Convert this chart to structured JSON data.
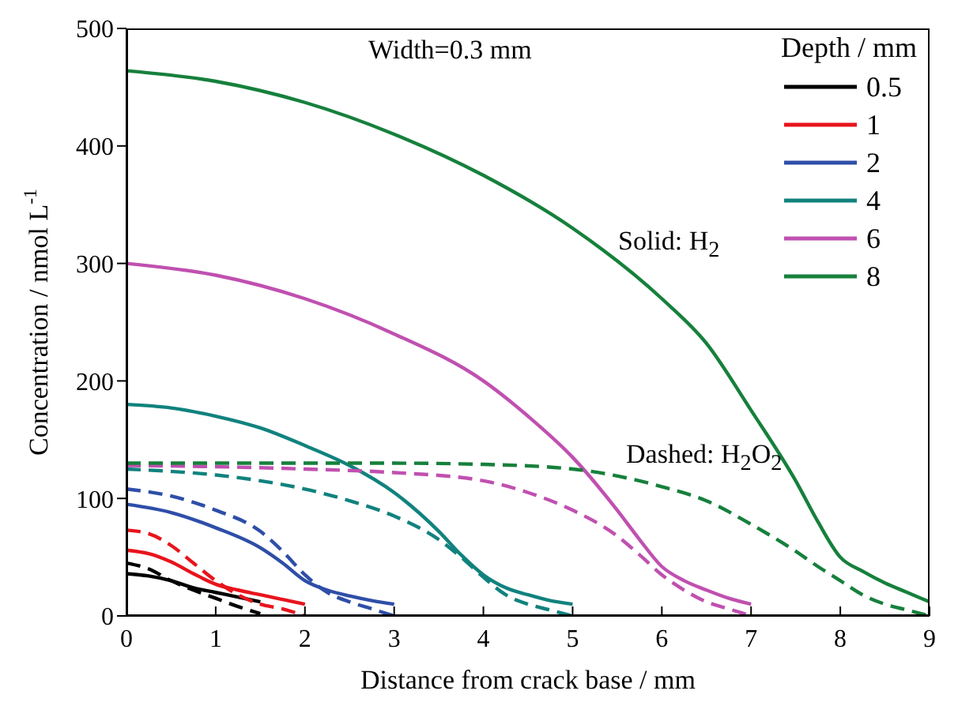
{
  "chart_data": {
    "type": "line",
    "xlabel": "Distance from crack base / mm",
    "ylabel": "Concentration / nmol L$^{-1}$",
    "legend_title": "Depth / mm",
    "legend": "top right",
    "marker": "none",
    "annotations": [
      "Width=0.3 mm",
      "Solid: H$_{2}$",
      "Dashed: H$_{2}$O$_{2}$"
    ],
    "xlim": [
      0,
      9
    ],
    "xticks": [
      0,
      1,
      2,
      3,
      4,
      5,
      6,
      7,
      8,
      9
    ],
    "ylim": [
      0,
      500
    ],
    "yticks": [
      0,
      100,
      200,
      300,
      400,
      500
    ],
    "series": [
      {
        "name": "0.5",
        "color": "#000000",
        "line_style": "solid",
        "x": [
          0,
          0.25,
          0.5,
          0.75,
          1,
          1.25,
          1.5
        ],
        "values": [
          36,
          34,
          30,
          24,
          20,
          16,
          12
        ]
      },
      {
        "name": "1",
        "color": "#e8141c",
        "line_style": "solid",
        "x": [
          0,
          0.25,
          0.5,
          0.75,
          1,
          1.25,
          1.5,
          1.75,
          2
        ],
        "values": [
          56,
          53,
          46,
          36,
          27,
          22,
          18,
          14,
          10
        ]
      },
      {
        "name": "2",
        "color": "#2e4ea8",
        "line_style": "solid",
        "x": [
          0,
          0.5,
          1,
          1.5,
          1.75,
          2,
          2.25,
          2.5,
          2.75,
          3
        ],
        "values": [
          95,
          88,
          75,
          58,
          45,
          30,
          22,
          17,
          13,
          10
        ]
      },
      {
        "name": "4",
        "color": "#11827e",
        "line_style": "solid",
        "x": [
          0,
          0.5,
          1,
          1.5,
          2,
          2.5,
          3,
          3.5,
          3.75,
          4,
          4.25,
          4.5,
          4.75,
          5
        ],
        "values": [
          180,
          177,
          170,
          160,
          145,
          128,
          105,
          72,
          52,
          35,
          24,
          18,
          13,
          10
        ]
      },
      {
        "name": "6",
        "color": "#c050b0",
        "line_style": "solid",
        "x": [
          0,
          1,
          2,
          3,
          4,
          4.5,
          5,
          5.5,
          5.75,
          6,
          6.25,
          6.5,
          6.75,
          7
        ],
        "values": [
          300,
          290,
          270,
          240,
          200,
          170,
          135,
          90,
          65,
          42,
          30,
          22,
          15,
          10
        ]
      },
      {
        "name": "8",
        "color": "#16803c",
        "line_style": "solid",
        "x": [
          0,
          1,
          2,
          3,
          4,
          5,
          6,
          6.5,
          7,
          7.5,
          7.75,
          8,
          8.25,
          8.5,
          8.75,
          9
        ],
        "values": [
          464,
          455,
          437,
          410,
          375,
          330,
          270,
          232,
          175,
          115,
          80,
          50,
          38,
          28,
          20,
          12
        ]
      },
      {
        "color": "#000000",
        "line_style": "dashed",
        "x": [
          0,
          0.25,
          0.5,
          0.75,
          1,
          1.25,
          1.5
        ],
        "values": [
          45,
          40,
          30,
          22,
          15,
          8,
          2
        ]
      },
      {
        "color": "#e8141c",
        "line_style": "dashed",
        "x": [
          0,
          0.25,
          0.5,
          0.75,
          1,
          1.25,
          1.5,
          1.75,
          2
        ],
        "values": [
          73,
          70,
          60,
          45,
          30,
          18,
          10,
          6,
          0
        ]
      },
      {
        "color": "#2e4ea8",
        "line_style": "dashed",
        "x": [
          0,
          0.5,
          1,
          1.5,
          1.75,
          2,
          2.25,
          2.5,
          2.75,
          3
        ],
        "values": [
          108,
          102,
          90,
          72,
          55,
          35,
          20,
          12,
          6,
          0
        ]
      },
      {
        "color": "#11827e",
        "line_style": "dashed",
        "x": [
          0,
          0.5,
          1,
          1.5,
          2,
          2.5,
          3,
          3.5,
          3.75,
          4,
          4.25,
          4.5,
          4.75,
          5
        ],
        "values": [
          125,
          123,
          120,
          115,
          108,
          98,
          85,
          65,
          50,
          33,
          18,
          10,
          5,
          0
        ]
      },
      {
        "color": "#c050b0",
        "line_style": "dashed",
        "x": [
          0,
          1,
          2,
          3,
          4,
          4.5,
          5,
          5.5,
          5.75,
          6,
          6.25,
          6.5,
          6.75,
          7
        ],
        "values": [
          128,
          127,
          125,
          122,
          115,
          105,
          90,
          68,
          52,
          35,
          22,
          12,
          6,
          0
        ]
      },
      {
        "color": "#16803c",
        "line_style": "dashed",
        "x": [
          0,
          1,
          2,
          3,
          4,
          5,
          6,
          6.5,
          7,
          7.5,
          7.75,
          8,
          8.25,
          8.5,
          8.75,
          9
        ],
        "values": [
          130,
          130,
          130,
          130,
          129,
          125,
          110,
          98,
          78,
          55,
          42,
          30,
          18,
          10,
          5,
          0
        ]
      }
    ]
  }
}
